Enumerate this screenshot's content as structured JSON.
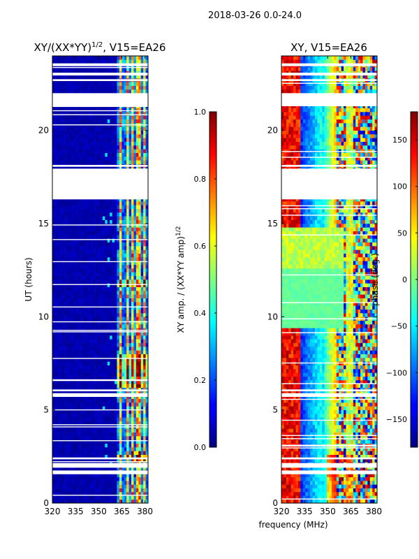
{
  "figure_title": "2018-03-26 0.0-24.0",
  "shared_xlabel": "frequency (MHz)",
  "chart_data": [
    {
      "type": "heatmap",
      "panel": "amplitude",
      "title_prefix": "XY/(XX*YY)",
      "title_sup": "1/2",
      "title_suffix": ", V15=EA26",
      "ylabel": "UT (hours)",
      "x_range": [
        320,
        382
      ],
      "y_range": [
        0,
        24
      ],
      "x_ticks": [
        320,
        335,
        350,
        365,
        380
      ],
      "y_ticks": [
        0,
        5,
        10,
        15,
        20
      ],
      "colormap": "jet",
      "colorbar": {
        "label_main": "XY amp. / (XX*YY amp)",
        "label_sup": "1/2",
        "range": [
          0.0,
          1.0
        ],
        "ticks": [
          0.0,
          0.2,
          0.4,
          0.6,
          0.8,
          1.0
        ],
        "tick_labels": [
          "0.0",
          "0.2",
          "0.4",
          "0.6",
          "0.8",
          "1.0"
        ]
      },
      "gaps_hours": [
        [
          1.55,
          1.75
        ],
        [
          1.9,
          2.15
        ],
        [
          2.35,
          2.45
        ],
        [
          5.7,
          5.9
        ],
        [
          6.0,
          6.1
        ],
        [
          16.3,
          17.95
        ],
        [
          18.05,
          18.15
        ],
        [
          21.3,
          22.0
        ],
        [
          22.65,
          22.75
        ],
        [
          22.95,
          23.1
        ],
        [
          23.45,
          23.6
        ]
      ],
      "bright_band_mhz": [
        362,
        382
      ],
      "bright_columns_mhz": [
        364.5,
        368.5,
        372,
        376,
        379.5
      ]
    },
    {
      "type": "heatmap",
      "panel": "phase",
      "title": "XY, V15=EA26",
      "ylabel": "",
      "x_range": [
        320,
        382
      ],
      "y_range": [
        0,
        24
      ],
      "x_ticks": [
        320,
        335,
        350,
        365,
        380
      ],
      "y_ticks": [
        0,
        5,
        10,
        15,
        20
      ],
      "colormap": "jet",
      "colorbar": {
        "label_main": "phase (deg.)",
        "range": [
          -180,
          180
        ],
        "ticks": [
          -150,
          -100,
          -50,
          0,
          50,
          100,
          150
        ],
        "tick_labels": [
          "−150",
          "−100",
          "−50",
          "0",
          "50",
          "100",
          "150"
        ]
      },
      "gaps_hours": [
        [
          1.55,
          1.75
        ],
        [
          1.9,
          2.15
        ],
        [
          2.35,
          2.45
        ],
        [
          5.7,
          5.9
        ],
        [
          6.0,
          6.1
        ],
        [
          16.3,
          17.95
        ],
        [
          18.05,
          18.15
        ],
        [
          21.3,
          22.0
        ],
        [
          22.65,
          22.75
        ],
        [
          22.95,
          23.1
        ],
        [
          23.45,
          23.6
        ]
      ],
      "flat_region_hours": [
        9.5,
        12.5
      ],
      "flat_region_phase_deg": -10
    }
  ]
}
